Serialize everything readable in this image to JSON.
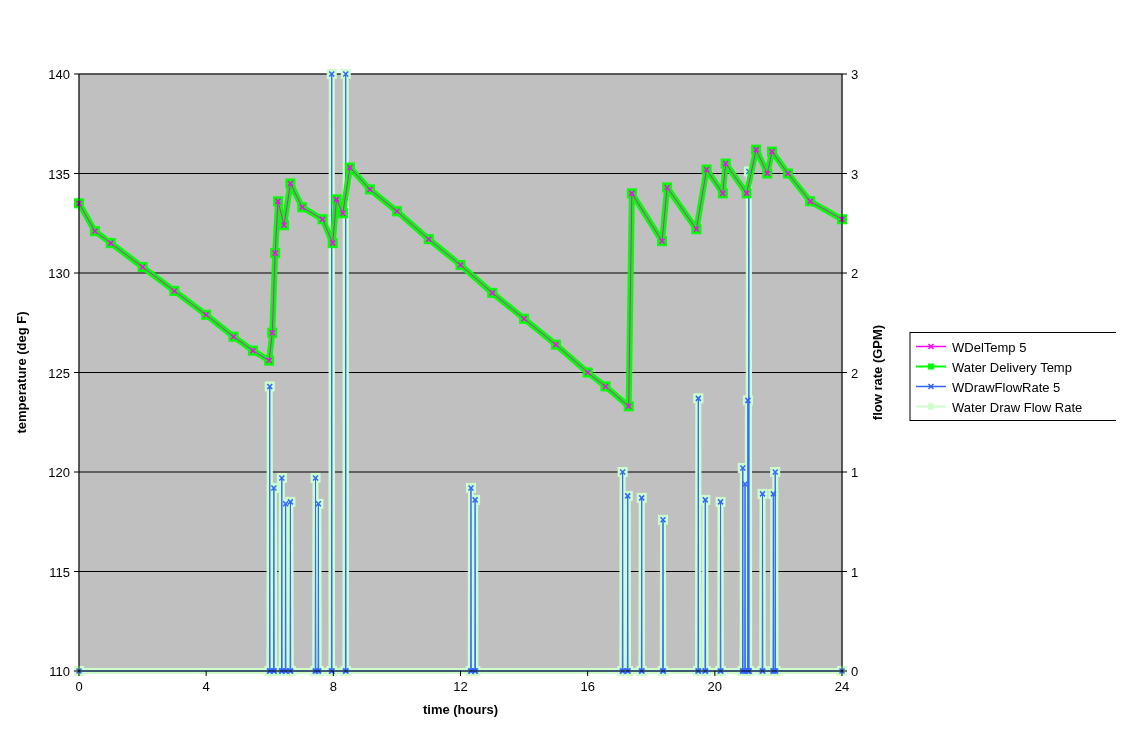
{
  "chart_data": {
    "type": "line",
    "xlabel": "time (hours)",
    "ylabel": "temperature (deg F)",
    "y2label": "flow rate (GPM)",
    "xlim": [
      0,
      24
    ],
    "xticks": [
      0,
      4,
      8,
      12,
      16,
      20,
      24
    ],
    "ylim": [
      110,
      140
    ],
    "yticks": [
      110,
      115,
      120,
      125,
      130,
      135,
      140
    ],
    "y2lim": [
      0,
      3
    ],
    "y2ticks": [
      0,
      {
        "value": 0.5,
        "label": "1"
      },
      1,
      {
        "value": 1.5,
        "label": "2"
      },
      2,
      {
        "value": 2.5,
        "label": "3"
      },
      3
    ],
    "grid": "y",
    "legend": "right",
    "series": [
      {
        "name": "WDelTemp 5",
        "color": "#ff00ff",
        "marker": "cross",
        "x": [
          0,
          0.5,
          1,
          2,
          3,
          4,
          4.86,
          5.47,
          5.98,
          6.08,
          6.17,
          6.26,
          6.45,
          6.65,
          7.02,
          7.66,
          7.98,
          8.1,
          8.3,
          8.52,
          9.15,
          10,
          11,
          12,
          13,
          14,
          15,
          16,
          16.56,
          17.29,
          17.39,
          18.34,
          18.5,
          19.42,
          19.74,
          20.25,
          20.34,
          21,
          21.3,
          21.65,
          21.8,
          22.3,
          23,
          24
        ],
        "values": [
          133.5,
          132.1,
          131.5,
          130.3,
          129.1,
          127.9,
          126.8,
          126.1,
          125.6,
          127,
          131,
          133.6,
          132.4,
          134.5,
          133.3,
          132.7,
          131.5,
          133.7,
          133,
          135.3,
          134.2,
          133.1,
          131.7,
          130.4,
          129,
          127.7,
          126.4,
          125,
          124.3,
          123.3,
          134,
          131.6,
          134.3,
          132.2,
          135.2,
          134,
          135.5,
          134,
          136.2,
          135,
          136.1,
          135,
          133.6,
          132.7
        ]
      },
      {
        "name": "Water Delivery Temp",
        "color": "#00ff00",
        "marker": "square",
        "x": [
          0,
          0.5,
          1,
          2,
          3,
          4,
          4.86,
          5.47,
          5.98,
          6.08,
          6.17,
          6.26,
          6.45,
          6.65,
          7.02,
          7.66,
          7.98,
          8.1,
          8.3,
          8.52,
          9.15,
          10,
          11,
          12,
          13,
          14,
          15,
          16,
          16.56,
          17.29,
          17.39,
          18.34,
          18.5,
          19.42,
          19.74,
          20.25,
          20.34,
          21,
          21.3,
          21.65,
          21.8,
          22.3,
          23,
          24
        ],
        "values": [
          133.5,
          132.1,
          131.5,
          130.3,
          129.1,
          127.9,
          126.8,
          126.1,
          125.6,
          127,
          131,
          133.6,
          132.4,
          134.5,
          133.3,
          132.7,
          131.5,
          133.7,
          133,
          135.3,
          134.2,
          133.1,
          131.7,
          130.4,
          129,
          127.7,
          126.4,
          125,
          124.3,
          123.3,
          134,
          131.6,
          134.3,
          132.2,
          135.2,
          134,
          135.5,
          134,
          136.2,
          135,
          136.1,
          135,
          133.6,
          132.7
        ]
      },
      {
        "name": "WDrawFlowRate 5",
        "color": "#3366ff",
        "marker": "cross",
        "axis": "y2",
        "x": [
          0,
          5.99,
          6,
          6.01,
          6.12,
          6.13,
          6.14,
          6.37,
          6.38,
          6.39,
          6.49,
          6.5,
          6.51,
          6.64,
          6.65,
          6.66,
          7.43,
          7.44,
          7.45,
          7.52,
          7.53,
          7.54,
          7.94,
          7.95,
          7.96,
          8.38,
          8.39,
          8.4,
          12.32,
          12.33,
          12.34,
          12.45,
          12.46,
          12.47,
          17.09,
          17.1,
          17.11,
          17.25,
          17.26,
          17.27,
          17.69,
          17.7,
          17.71,
          18.36,
          18.37,
          18.38,
          19.47,
          19.48,
          19.49,
          19.69,
          19.7,
          19.71,
          20.17,
          20.18,
          20.19,
          20.87,
          20.88,
          20.89,
          20.94,
          20.95,
          20.96,
          21.03,
          21.04,
          21.05,
          21.06,
          21.07,
          21.08,
          21.49,
          21.5,
          21.51,
          21.83,
          21.84,
          21.85,
          21.89,
          21.9,
          21.91,
          24
        ],
        "values": [
          0,
          0,
          1.43,
          0,
          0,
          0.92,
          0,
          0,
          0.97,
          0,
          0,
          0.84,
          0,
          0,
          0.85,
          0,
          0,
          0.97,
          0,
          0,
          0.84,
          0,
          0,
          3,
          0,
          0,
          3,
          0,
          0,
          0.92,
          0,
          0,
          0.86,
          0,
          0,
          1.0,
          0,
          0,
          0.88,
          0,
          0,
          0.87,
          0,
          0,
          0.76,
          0,
          0,
          1.37,
          0,
          0,
          0.86,
          0,
          0,
          0.85,
          0,
          0,
          1.02,
          0,
          0,
          0.94,
          0,
          0,
          1.36,
          0,
          0,
          2.51,
          0,
          0,
          0.89,
          0,
          0,
          0.89,
          0,
          0,
          1.0,
          0,
          0
        ]
      },
      {
        "name": "Water Draw Flow Rate",
        "color": "#ccffcc",
        "marker": "square",
        "axis": "y2",
        "x": [
          0,
          5.99,
          6,
          6.01,
          6.12,
          6.13,
          6.14,
          6.37,
          6.38,
          6.39,
          6.49,
          6.5,
          6.51,
          6.64,
          6.65,
          6.66,
          7.43,
          7.44,
          7.45,
          7.52,
          7.53,
          7.54,
          7.94,
          7.95,
          7.96,
          8.38,
          8.39,
          8.4,
          12.32,
          12.33,
          12.34,
          12.45,
          12.46,
          12.47,
          17.09,
          17.1,
          17.11,
          17.25,
          17.26,
          17.27,
          17.69,
          17.7,
          17.71,
          18.36,
          18.37,
          18.38,
          19.47,
          19.48,
          19.49,
          19.69,
          19.7,
          19.71,
          20.17,
          20.18,
          20.19,
          20.87,
          20.88,
          20.89,
          20.94,
          20.95,
          20.96,
          21.03,
          21.04,
          21.05,
          21.06,
          21.07,
          21.08,
          21.49,
          21.5,
          21.51,
          21.83,
          21.84,
          21.85,
          21.89,
          21.9,
          21.91,
          24
        ],
        "values": [
          0,
          0,
          1.43,
          0,
          0,
          0.92,
          0,
          0,
          0.97,
          0,
          0,
          0.84,
          0,
          0,
          0.85,
          0,
          0,
          0.97,
          0,
          0,
          0.84,
          0,
          0,
          3,
          0,
          0,
          3,
          0,
          0,
          0.92,
          0,
          0,
          0.86,
          0,
          0,
          1.0,
          0,
          0,
          0.88,
          0,
          0,
          0.87,
          0,
          0,
          0.76,
          0,
          0,
          1.37,
          0,
          0,
          0.86,
          0,
          0,
          0.85,
          0,
          0,
          1.02,
          0,
          0,
          0.94,
          0,
          0,
          1.36,
          0,
          0,
          2.51,
          0,
          0,
          0.89,
          0,
          0,
          0.89,
          0,
          0,
          1.0,
          0,
          0
        ]
      }
    ]
  }
}
